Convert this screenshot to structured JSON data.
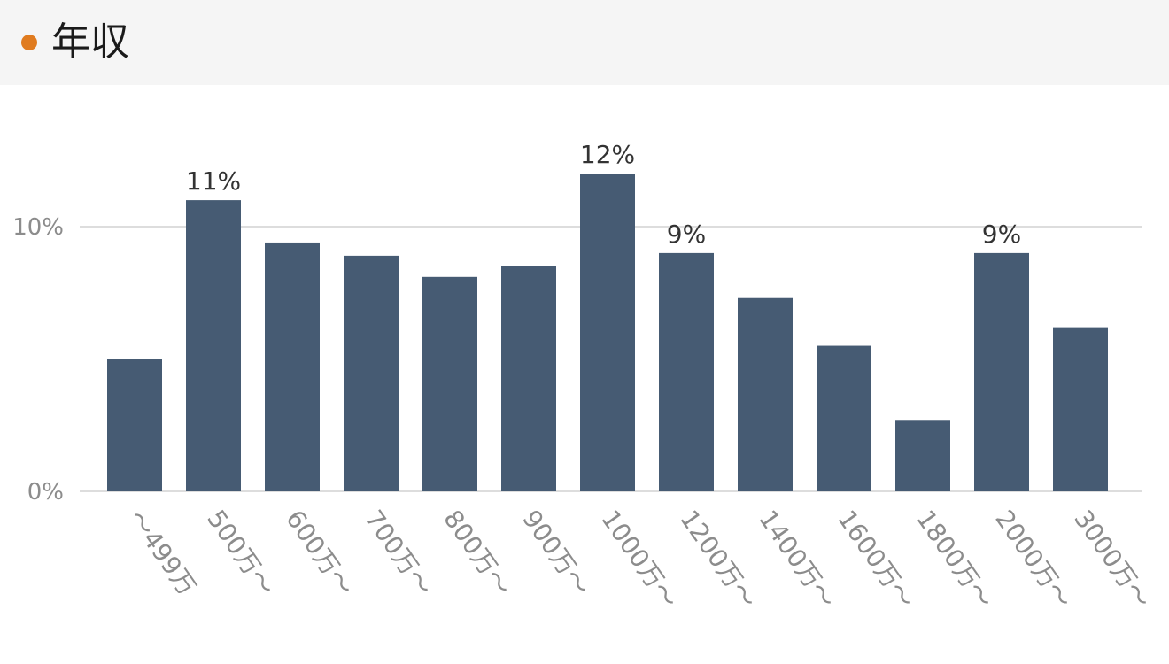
{
  "header": {
    "title": "年収",
    "dot_color": "#e07b1f"
  },
  "colors": {
    "bar": "#465b73",
    "grid": "#dddddd",
    "axis_text": "#8c8c8c",
    "label_text": "#333333"
  },
  "chart_data": {
    "type": "bar",
    "title": "年収",
    "categories": [
      "〜499万",
      "500万〜",
      "600万〜",
      "700万〜",
      "800万〜",
      "900万〜",
      "1000万〜",
      "1200万〜",
      "1400万〜",
      "1600万〜",
      "1800万〜",
      "2000万〜",
      "3000万〜"
    ],
    "values": [
      5.0,
      11.0,
      9.4,
      8.9,
      8.1,
      8.5,
      12.0,
      9.0,
      7.3,
      5.5,
      2.7,
      9.0,
      6.2
    ],
    "data_labels": [
      "",
      "11%",
      "",
      "",
      "",
      "",
      "12%",
      "9%",
      "",
      "",
      "",
      "9%",
      ""
    ],
    "yticks": [
      {
        "value": 0,
        "label": "0%"
      },
      {
        "value": 10,
        "label": "10%"
      }
    ],
    "ylim": [
      0,
      10
    ],
    "xlabel": "",
    "ylabel": "",
    "grid": true
  }
}
